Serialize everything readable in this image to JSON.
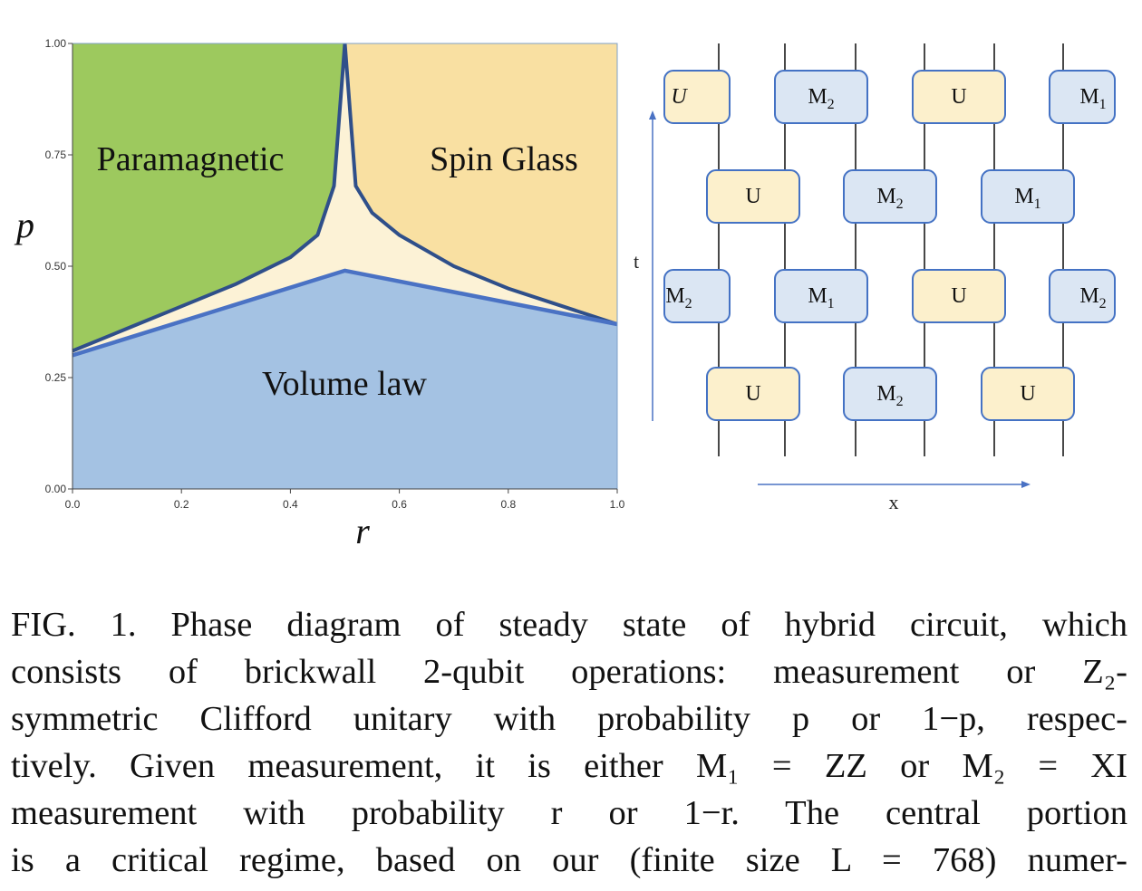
{
  "chart_data": {
    "type": "area",
    "regions": [
      {
        "name": "Paramagnetic",
        "color": "#9dc95e"
      },
      {
        "name": "Spin Glass",
        "color": "#f9e0a2"
      },
      {
        "name": "Volume law",
        "color": "#a4c2e3"
      },
      {
        "name": "critical",
        "color": "#fcf2d6"
      }
    ],
    "boundaries": {
      "upper_curve": {
        "x": [
          0.0,
          0.1,
          0.2,
          0.3,
          0.4,
          0.45,
          0.48,
          0.5,
          0.52,
          0.55,
          0.6,
          0.7,
          0.8,
          0.9,
          1.0
        ],
        "y": [
          0.31,
          0.36,
          0.41,
          0.46,
          0.52,
          0.57,
          0.68,
          1.0,
          0.68,
          0.62,
          0.57,
          0.5,
          0.45,
          0.41,
          0.37
        ],
        "color": "#2f4f8a"
      },
      "lower_line": {
        "x": [
          0.0,
          0.5,
          1.0
        ],
        "y": [
          0.3,
          0.49,
          0.37
        ],
        "color": "#4a72c4"
      }
    },
    "xlabel": "r",
    "ylabel": "p",
    "xlim": [
      0.0,
      1.0
    ],
    "ylim": [
      0.0,
      1.0
    ],
    "xticks": [
      "0.0",
      "0.2",
      "0.4",
      "0.6",
      "0.8",
      "1.0"
    ],
    "yticks": [
      "0.00",
      "0.25",
      "0.50",
      "0.75",
      "1.00"
    ],
    "region_labels": {
      "paramagnetic": "Paramagnetic",
      "spin_glass": "Spin Glass",
      "volume_law": "Volume law"
    }
  },
  "circuit": {
    "time_label": "t",
    "space_label": "x",
    "unitary_color": "#fcf0cc",
    "measure_color": "#dbe6f3",
    "rows": [
      {
        "gates": [
          {
            "label": "U",
            "italic": true,
            "type": "u"
          },
          {
            "label": "M",
            "sub": "2",
            "type": "m"
          },
          {
            "label": "U",
            "type": "u"
          },
          {
            "label": "M",
            "sub": "1",
            "type": "m"
          }
        ]
      },
      {
        "gates": [
          {
            "label": "U",
            "type": "u"
          },
          {
            "label": "M",
            "sub": "2",
            "type": "m"
          },
          {
            "label": "M",
            "sub": "1",
            "type": "m"
          }
        ]
      },
      {
        "gates": [
          {
            "label": "M",
            "sub": "2",
            "type": "m"
          },
          {
            "label": "M",
            "sub": "1",
            "type": "m"
          },
          {
            "label": "U",
            "type": "u"
          },
          {
            "label": "M",
            "sub": "2",
            "type": "m"
          }
        ]
      },
      {
        "gates": [
          {
            "label": "U",
            "type": "u"
          },
          {
            "label": "M",
            "sub": "2",
            "type": "m"
          },
          {
            "label": "U",
            "type": "u"
          }
        ]
      }
    ]
  },
  "caption": {
    "lines": [
      "FIG. 1. Phase diagram of steady state of hybrid circuit, which",
      "consists of brickwall 2-qubit operations: measurement or Z₂-",
      "symmetric Clifford unitary with probability p or 1−p, respec-",
      "tively. Given measurement, it is either M₁ = ZZ or M₂ = XI",
      "measurement with probability r or 1−r. The central portion",
      "is a critical regime, based on our (finite size L = 768) numer-"
    ]
  }
}
